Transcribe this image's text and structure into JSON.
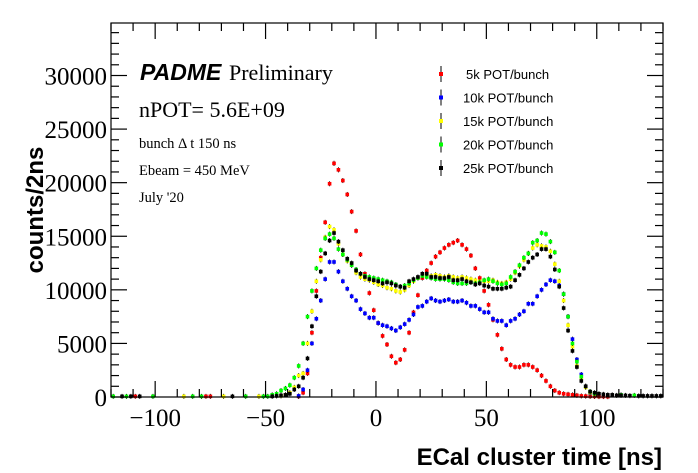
{
  "chart_data": {
    "type": "scatter",
    "title": "",
    "xlabel": "ECal cluster time [ns]",
    "ylabel": "counts/2ns",
    "xlim": [
      -120,
      130
    ],
    "ylim": [
      0,
      34900
    ],
    "x_ticks": [
      -100,
      -50,
      0,
      50,
      100
    ],
    "x_tick_labels": [
      "−100",
      "−50",
      "0",
      "50",
      "100"
    ],
    "y_ticks": [
      0,
      5000,
      10000,
      15000,
      20000,
      25000,
      30000
    ],
    "y_tick_labels": [
      "0",
      "5000",
      "10000",
      "15000",
      "20000",
      "25000",
      "30000"
    ],
    "x_minor_step": 10,
    "y_minor_step": 1000,
    "bin_width_ns": 2,
    "grid": false,
    "legend_position": "top-right",
    "annotations": {
      "experiment": "PADME",
      "status": "Preliminary",
      "npot": "nPOT= 5.6E+09",
      "bunch": "bunch Δ t 150 ns",
      "ebeam": "Ebeam = 450 MeV",
      "date": "July '20"
    },
    "series": [
      {
        "name": "5k POT/bunch",
        "color": "#ff0000",
        "x": [
          -109,
          -77,
          -75,
          -35,
          -33,
          -31,
          -29,
          -27,
          -25,
          -23,
          -21,
          -19,
          -17,
          -15,
          -13,
          -11,
          -9,
          -7,
          -5,
          -3,
          -1,
          1,
          3,
          5,
          7,
          9,
          11,
          13,
          15,
          17,
          19,
          21,
          23,
          25,
          27,
          29,
          31,
          33,
          35,
          37,
          39,
          41,
          43,
          45,
          47,
          49,
          51,
          53,
          55,
          57,
          59,
          61,
          63,
          65,
          67,
          69,
          71,
          73,
          75,
          77,
          79,
          81,
          83,
          85,
          87,
          89,
          91,
          93,
          95,
          97,
          99,
          101,
          103,
          105
        ],
        "y": [
          60,
          60,
          60,
          50,
          400,
          2200,
          6000,
          9900,
          13000,
          16300,
          19900,
          21800,
          21200,
          20200,
          18900,
          17300,
          15500,
          13300,
          11500,
          9700,
          8100,
          6900,
          5700,
          4900,
          3800,
          3200,
          3500,
          4400,
          6000,
          7900,
          9500,
          11100,
          11800,
          12500,
          13100,
          13500,
          13900,
          14200,
          14400,
          14600,
          14200,
          13800,
          13200,
          12000,
          11100,
          9900,
          8600,
          7200,
          5800,
          4500,
          3500,
          3000,
          2800,
          2800,
          3000,
          3000,
          2800,
          2500,
          2000,
          1500,
          1000,
          600,
          400,
          300,
          250,
          200,
          150,
          100,
          80,
          60,
          50,
          40,
          40,
          30
        ]
      },
      {
        "name": "10k POT/bunch",
        "color": "#0000ff",
        "x": [
          -35,
          -33,
          -31,
          -29,
          -27,
          -25,
          -23,
          -21,
          -19,
          -17,
          -15,
          -13,
          -11,
          -9,
          -7,
          -5,
          -3,
          -1,
          1,
          3,
          5,
          7,
          9,
          11,
          13,
          15,
          17,
          19,
          21,
          23,
          25,
          27,
          29,
          31,
          33,
          35,
          37,
          39,
          41,
          43,
          45,
          47,
          49,
          51,
          53,
          55,
          57,
          59,
          61,
          63,
          65,
          67,
          69,
          71,
          73,
          75,
          77,
          79,
          81,
          83,
          85,
          87,
          89,
          91,
          93,
          95,
          97
        ],
        "y": [
          100,
          700,
          2500,
          5000,
          7300,
          9000,
          11000,
          12600,
          12600,
          11700,
          10800,
          10100,
          9400,
          9000,
          8200,
          7800,
          7400,
          7400,
          6900,
          6700,
          6600,
          6400,
          6200,
          6500,
          6800,
          7200,
          7700,
          8400,
          8500,
          8900,
          9200,
          9000,
          8900,
          9000,
          9100,
          8900,
          8900,
          9000,
          8800,
          8500,
          8500,
          8200,
          7900,
          7900,
          7300,
          7100,
          7100,
          6700,
          7100,
          7300,
          7700,
          8000,
          8700,
          8700,
          9400,
          10000,
          10500,
          10900,
          10800,
          10400,
          9600,
          7500,
          5400,
          3500,
          2100,
          1000,
          350
        ]
      },
      {
        "name": "15k POT/bunch",
        "color": "#ffff00",
        "x": [
          -87,
          -69,
          -53,
          -43,
          -41,
          -39,
          -37,
          -35,
          -33,
          -31,
          -29,
          -27,
          -25,
          -23,
          -21,
          -19,
          -17,
          -15,
          -13,
          -11,
          -9,
          -7,
          -5,
          -3,
          -1,
          1,
          3,
          5,
          7,
          9,
          11,
          13,
          15,
          17,
          19,
          21,
          23,
          25,
          27,
          29,
          31,
          33,
          35,
          37,
          39,
          41,
          43,
          45,
          47,
          49,
          51,
          53,
          55,
          57,
          59,
          61,
          63,
          65,
          67,
          69,
          71,
          73,
          75,
          77,
          79,
          81,
          83,
          85,
          87,
          89,
          91,
          93,
          95,
          97
        ],
        "y": [
          60,
          60,
          60,
          100,
          200,
          400,
          900,
          2000,
          2200,
          5000,
          8000,
          10800,
          12800,
          14900,
          15900,
          15600,
          14300,
          13300,
          12700,
          12300,
          11600,
          11200,
          11000,
          10900,
          10700,
          10500,
          10400,
          10200,
          10100,
          9900,
          9800,
          10000,
          10400,
          10800,
          11100,
          11400,
          11400,
          11300,
          11400,
          11300,
          11200,
          11300,
          11200,
          11100,
          11200,
          11100,
          11000,
          10900,
          10800,
          10800,
          10800,
          10900,
          10700,
          10600,
          10700,
          11000,
          11600,
          12200,
          12800,
          13400,
          13900,
          14200,
          14100,
          14000,
          13600,
          12400,
          10800,
          9000,
          6700,
          4700,
          2900,
          1700,
          900,
          400
        ]
      },
      {
        "name": "20k POT/bunch",
        "color": "#00ff00",
        "x": [
          -119,
          -113,
          -101,
          -83,
          -79,
          -59,
          -51,
          -49,
          -47,
          -45,
          -43,
          -41,
          -39,
          -37,
          -35,
          -33,
          -31,
          -29,
          -27,
          -25,
          -23,
          -21,
          -19,
          -17,
          -15,
          -13,
          -11,
          -9,
          -7,
          -5,
          -3,
          -1,
          1,
          3,
          5,
          7,
          9,
          11,
          13,
          15,
          17,
          19,
          21,
          23,
          25,
          27,
          29,
          31,
          33,
          35,
          37,
          39,
          41,
          43,
          45,
          47,
          49,
          51,
          53,
          55,
          57,
          59,
          61,
          63,
          65,
          67,
          69,
          71,
          73,
          75,
          77,
          79,
          81,
          83,
          85,
          87,
          89,
          91,
          93,
          95,
          97,
          99,
          111,
          117
        ],
        "y": [
          60,
          60,
          60,
          60,
          60,
          60,
          60,
          60,
          200,
          300,
          600,
          800,
          1100,
          1800,
          2900,
          5000,
          7500,
          9900,
          12000,
          13700,
          14800,
          15200,
          14800,
          13800,
          13300,
          12800,
          12300,
          11900,
          11500,
          11300,
          11200,
          11100,
          11000,
          10900,
          10800,
          10700,
          10500,
          10300,
          10400,
          10600,
          10900,
          11100,
          11300,
          11200,
          11100,
          11000,
          11000,
          11000,
          10900,
          10700,
          10600,
          10600,
          10600,
          10700,
          10600,
          10700,
          10900,
          11000,
          10800,
          10600,
          10500,
          10600,
          11200,
          11700,
          12300,
          13000,
          13400,
          14400,
          14600,
          15300,
          15200,
          14500,
          13500,
          11800,
          9600,
          7500,
          5000,
          3300,
          1900,
          1000,
          500,
          300,
          200,
          150
        ]
      },
      {
        "name": "25k POT/bunch",
        "color": "#000000",
        "x": [
          -115,
          -111,
          -107,
          -65,
          -47,
          -45,
          -43,
          -41,
          -39,
          -37,
          -35,
          -33,
          -31,
          -29,
          -27,
          -25,
          -23,
          -21,
          -19,
          -17,
          -15,
          -13,
          -11,
          -9,
          -7,
          -5,
          -3,
          -1,
          1,
          3,
          5,
          7,
          9,
          11,
          13,
          15,
          17,
          19,
          21,
          23,
          25,
          27,
          29,
          31,
          33,
          35,
          37,
          39,
          41,
          43,
          45,
          47,
          49,
          51,
          53,
          55,
          57,
          59,
          61,
          63,
          65,
          67,
          69,
          71,
          73,
          75,
          77,
          79,
          81,
          83,
          85,
          87,
          89,
          91,
          93,
          95,
          97,
          99,
          101,
          103,
          105,
          107,
          109,
          111,
          113,
          115,
          119,
          121,
          123,
          125,
          127,
          129
        ],
        "y": [
          60,
          60,
          60,
          60,
          60,
          100,
          150,
          200,
          300,
          700,
          1000,
          1800,
          3600,
          6600,
          9400,
          11700,
          13400,
          14600,
          15300,
          14500,
          13700,
          12900,
          12500,
          11800,
          11500,
          11200,
          11000,
          10900,
          10800,
          10600,
          10700,
          10600,
          10400,
          10300,
          10200,
          10800,
          11000,
          11200,
          11500,
          11500,
          11200,
          11200,
          11100,
          11100,
          11200,
          10900,
          10900,
          11000,
          10800,
          10700,
          10500,
          10600,
          10400,
          10300,
          10100,
          10100,
          10100,
          10200,
          10300,
          10900,
          11400,
          12000,
          12600,
          13000,
          13300,
          13800,
          13800,
          13100,
          11900,
          10300,
          8300,
          6200,
          4300,
          2800,
          1500,
          1000,
          500,
          400,
          300,
          250,
          200,
          200,
          150,
          150,
          150,
          120,
          100,
          100,
          100,
          100,
          100,
          100
        ]
      }
    ]
  }
}
